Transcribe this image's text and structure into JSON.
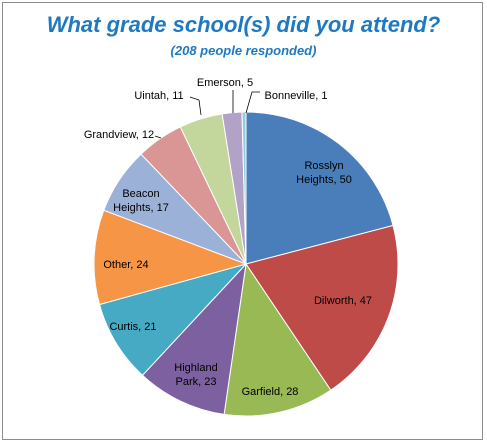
{
  "chart_data": {
    "type": "pie",
    "title": "What grade school(s) did you attend?",
    "subtitle": "(208 people responded)",
    "slices": [
      {
        "name": "Rosslyn Heights",
        "value": 50,
        "label": [
          "Rosslyn",
          "Heights, 50"
        ],
        "color": "#4a7ebb",
        "label_pos": "inside"
      },
      {
        "name": "Dilworth",
        "value": 47,
        "label": [
          "Dilworth, 47"
        ],
        "color": "#be4b48",
        "label_pos": "inside"
      },
      {
        "name": "Garfield",
        "value": 28,
        "label": [
          "Garfield, 28"
        ],
        "color": "#98b954",
        "label_pos": "inside"
      },
      {
        "name": "Highland Park",
        "value": 23,
        "label": [
          "Highland",
          "Park, 23"
        ],
        "color": "#7d60a0",
        "label_pos": "inside"
      },
      {
        "name": "Curtis",
        "value": 21,
        "label": [
          "Curtis, 21"
        ],
        "color": "#46aac5",
        "label_pos": "inside"
      },
      {
        "name": "Other",
        "value": 24,
        "label": [
          "Other, 24"
        ],
        "color": "#f69546",
        "label_pos": "inside"
      },
      {
        "name": "Beacon Heights",
        "value": 17,
        "label": [
          "Beacon",
          "Heights, 17"
        ],
        "color": "#9cb1d8",
        "label_pos": "inside"
      },
      {
        "name": "Grandview",
        "value": 12,
        "label": [
          "Grandview, 12"
        ],
        "color": "#d99694",
        "label_pos": "outside"
      },
      {
        "name": "Uintah",
        "value": 11,
        "label": [
          "Uintah, 11"
        ],
        "color": "#c3d69b",
        "label_pos": "outside"
      },
      {
        "name": "Emerson",
        "value": 5,
        "label": [
          "Emerson, 5"
        ],
        "color": "#b3a2c7",
        "label_pos": "outside"
      },
      {
        "name": "Bonneville",
        "value": 1,
        "label": [
          "Bonneville, 1"
        ],
        "color": "#93cddd",
        "label_pos": "outside"
      }
    ],
    "start_angle": "12 o'clock",
    "direction": "clockwise",
    "legend": "none"
  }
}
